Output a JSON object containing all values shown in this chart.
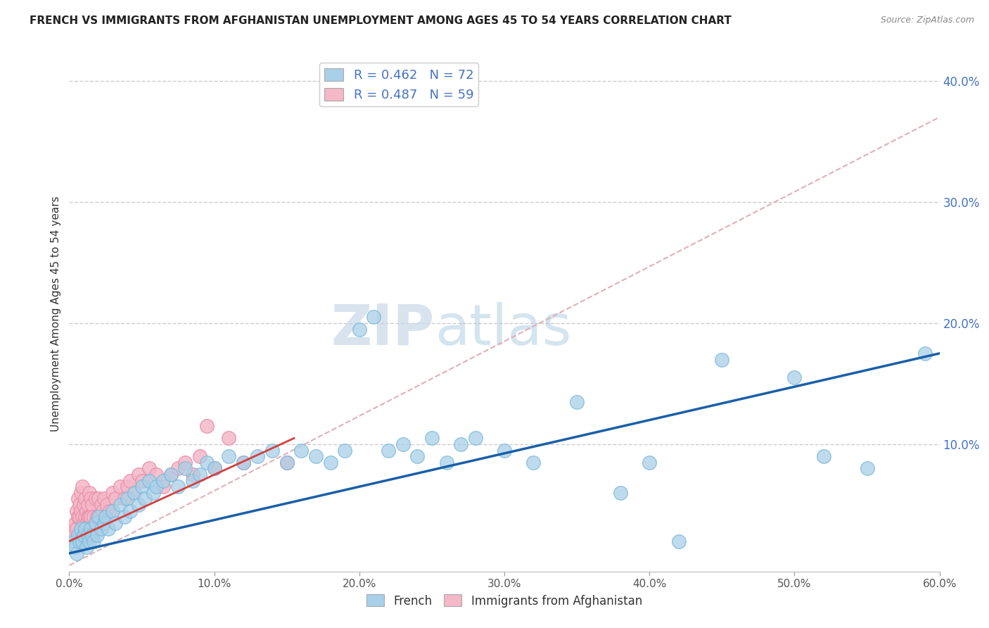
{
  "title": "FRENCH VS IMMIGRANTS FROM AFGHANISTAN UNEMPLOYMENT AMONG AGES 45 TO 54 YEARS CORRELATION CHART",
  "source": "Source: ZipAtlas.com",
  "ylabel": "Unemployment Among Ages 45 to 54 years",
  "xlim": [
    0,
    0.6
  ],
  "ylim": [
    -0.005,
    0.42
  ],
  "french_color": "#a8d0e8",
  "french_edge_color": "#7ab8d8",
  "afghan_color": "#f4b8c8",
  "afghan_edge_color": "#e890a8",
  "french_line_color": "#1a5fa8",
  "afghan_line_color": "#d44040",
  "ref_line_color": "#e0b0b8",
  "grid_color": "#cccccc",
  "legend_french_label": "R = 0.462   N = 72",
  "legend_afghan_label": "R = 0.487   N = 59",
  "watermark_zip": "ZIP",
  "watermark_atlas": "atlas",
  "french_line_x0": 0.0,
  "french_line_x1": 0.6,
  "french_line_y0": 0.01,
  "french_line_y1": 0.175,
  "afghan_line_x0": 0.0,
  "afghan_line_x1": 0.155,
  "afghan_line_y0": 0.02,
  "afghan_line_y1": 0.105,
  "ref_line_x0": 0.0,
  "ref_line_x1": 0.6,
  "ref_line_y0": 0.0,
  "ref_line_y1": 0.37,
  "french_x": [
    0.003,
    0.004,
    0.005,
    0.006,
    0.007,
    0.008,
    0.009,
    0.01,
    0.011,
    0.012,
    0.013,
    0.014,
    0.015,
    0.016,
    0.017,
    0.018,
    0.019,
    0.02,
    0.022,
    0.024,
    0.025,
    0.027,
    0.03,
    0.032,
    0.035,
    0.038,
    0.04,
    0.042,
    0.045,
    0.048,
    0.05,
    0.052,
    0.055,
    0.058,
    0.06,
    0.065,
    0.07,
    0.075,
    0.08,
    0.085,
    0.09,
    0.095,
    0.1,
    0.11,
    0.12,
    0.13,
    0.14,
    0.15,
    0.16,
    0.17,
    0.18,
    0.19,
    0.2,
    0.21,
    0.22,
    0.23,
    0.24,
    0.25,
    0.26,
    0.27,
    0.28,
    0.3,
    0.32,
    0.35,
    0.38,
    0.4,
    0.42,
    0.45,
    0.5,
    0.52,
    0.55,
    0.59
  ],
  "french_y": [
    0.02,
    0.015,
    0.01,
    0.025,
    0.02,
    0.03,
    0.02,
    0.025,
    0.03,
    0.015,
    0.025,
    0.02,
    0.03,
    0.025,
    0.02,
    0.035,
    0.025,
    0.04,
    0.03,
    0.035,
    0.04,
    0.03,
    0.045,
    0.035,
    0.05,
    0.04,
    0.055,
    0.045,
    0.06,
    0.05,
    0.065,
    0.055,
    0.07,
    0.06,
    0.065,
    0.07,
    0.075,
    0.065,
    0.08,
    0.07,
    0.075,
    0.085,
    0.08,
    0.09,
    0.085,
    0.09,
    0.095,
    0.085,
    0.095,
    0.09,
    0.085,
    0.095,
    0.195,
    0.205,
    0.095,
    0.1,
    0.09,
    0.105,
    0.085,
    0.1,
    0.105,
    0.095,
    0.085,
    0.135,
    0.06,
    0.085,
    0.02,
    0.17,
    0.155,
    0.09,
    0.08,
    0.175
  ],
  "afghan_x": [
    0.002,
    0.003,
    0.004,
    0.005,
    0.005,
    0.006,
    0.006,
    0.007,
    0.007,
    0.008,
    0.008,
    0.009,
    0.009,
    0.01,
    0.01,
    0.011,
    0.011,
    0.012,
    0.012,
    0.013,
    0.013,
    0.014,
    0.014,
    0.015,
    0.015,
    0.016,
    0.017,
    0.018,
    0.019,
    0.02,
    0.021,
    0.022,
    0.023,
    0.024,
    0.025,
    0.026,
    0.028,
    0.03,
    0.032,
    0.035,
    0.038,
    0.04,
    0.042,
    0.045,
    0.048,
    0.05,
    0.055,
    0.06,
    0.065,
    0.07,
    0.075,
    0.08,
    0.085,
    0.09,
    0.095,
    0.1,
    0.11,
    0.12,
    0.15
  ],
  "afghan_y": [
    0.03,
    0.025,
    0.035,
    0.03,
    0.045,
    0.04,
    0.055,
    0.05,
    0.04,
    0.06,
    0.045,
    0.065,
    0.04,
    0.05,
    0.035,
    0.055,
    0.04,
    0.045,
    0.035,
    0.05,
    0.04,
    0.06,
    0.04,
    0.055,
    0.04,
    0.05,
    0.04,
    0.055,
    0.04,
    0.055,
    0.04,
    0.05,
    0.045,
    0.055,
    0.04,
    0.05,
    0.045,
    0.06,
    0.055,
    0.065,
    0.055,
    0.065,
    0.07,
    0.06,
    0.075,
    0.07,
    0.08,
    0.075,
    0.065,
    0.075,
    0.08,
    0.085,
    0.075,
    0.09,
    0.115,
    0.08,
    0.105,
    0.085,
    0.085
  ]
}
